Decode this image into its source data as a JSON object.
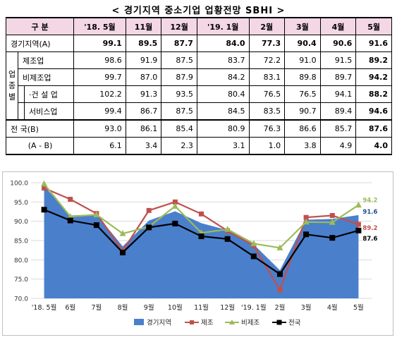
{
  "title": "< 경기지역 중소기업 업황전망 SBHI >",
  "table": {
    "header_label": "구 분",
    "columns": [
      "'18. 5월",
      "11월",
      "12월",
      "'19. 1월",
      "2월",
      "3월",
      "4월",
      "5월"
    ],
    "group_label": "업종별",
    "rows": [
      {
        "label": "경기지역(A)",
        "values": [
          "99.1",
          "89.5",
          "87.7",
          "84.0",
          "77.3",
          "90.4",
          "90.6",
          "91.6"
        ],
        "bold": true
      },
      {
        "label": "제조업",
        "values": [
          "98.6",
          "91.9",
          "87.5",
          "83.7",
          "72.2",
          "91.0",
          "91.5",
          "89.2"
        ],
        "bold": false
      },
      {
        "label": "비제조업",
        "values": [
          "99.7",
          "87.0",
          "87.9",
          "84.2",
          "83.1",
          "89.8",
          "89.7",
          "94.2"
        ],
        "bold": false
      },
      {
        "label": "·건 설 업",
        "values": [
          "102.2",
          "91.3",
          "93.5",
          "80.4",
          "76.5",
          "76.5",
          "94.1",
          "88.2"
        ],
        "bold": false
      },
      {
        "label": "서비스업",
        "values": [
          "99.4",
          "86.7",
          "87.5",
          "84.5",
          "83.5",
          "90.7",
          "89.4",
          "94.6"
        ],
        "bold": false
      },
      {
        "label": "전 국(B)",
        "values": [
          "93.0",
          "86.1",
          "85.4",
          "80.9",
          "76.3",
          "86.6",
          "85.7",
          "87.6"
        ],
        "bold": false
      },
      {
        "label": "(A - B)",
        "values": [
          "6.1",
          "3.4",
          "2.3",
          "3.1",
          "1.0",
          "3.8",
          "4.9",
          "4.0"
        ],
        "bold": false
      }
    ]
  },
  "chart_data": {
    "type": "area",
    "title": "",
    "xlabel": "",
    "ylabel": "",
    "ylim": [
      70.0,
      100.0
    ],
    "yticks": [
      "100.0",
      "95.0",
      "90.0",
      "85.0",
      "80.0",
      "75.0",
      "70.0"
    ],
    "categories": [
      "'18. 5월",
      "6월",
      "7월",
      "8월",
      "9월",
      "10월",
      "11월",
      "12월",
      "'19. 1월",
      "2월",
      "3월",
      "4월",
      "5월"
    ],
    "series": [
      {
        "name": "경기지역",
        "kind": "area",
        "color": "#4a7fcc",
        "values": [
          99.1,
          91.5,
          91.8,
          83.5,
          90.2,
          92.6,
          89.5,
          87.7,
          84.0,
          77.3,
          90.4,
          90.6,
          91.6
        ]
      },
      {
        "name": "제조",
        "kind": "line",
        "color": "#c0504d",
        "values": [
          98.6,
          95.7,
          92.0,
          82.3,
          92.8,
          95.0,
          91.9,
          87.5,
          83.7,
          72.2,
          91.0,
          91.5,
          89.2
        ]
      },
      {
        "name": "비제조",
        "kind": "line",
        "color": "#9bbb59",
        "values": [
          99.7,
          91.2,
          91.7,
          86.8,
          88.6,
          93.9,
          87.0,
          87.9,
          84.2,
          83.1,
          89.8,
          89.7,
          94.2
        ]
      },
      {
        "name": "전국",
        "kind": "line",
        "color": "#000000",
        "values": [
          93.0,
          90.2,
          89.0,
          81.9,
          88.4,
          89.4,
          86.1,
          85.4,
          80.9,
          76.3,
          86.6,
          85.7,
          87.6
        ]
      }
    ],
    "end_labels": [
      {
        "text": "94.2",
        "color": "#9bbb59"
      },
      {
        "text": "91.6",
        "color": "#1f4e8c"
      },
      {
        "text": "89.2",
        "color": "#c0504d"
      },
      {
        "text": "87.6",
        "color": "#000000"
      }
    ],
    "legend_position": "bottom",
    "grid": true
  }
}
